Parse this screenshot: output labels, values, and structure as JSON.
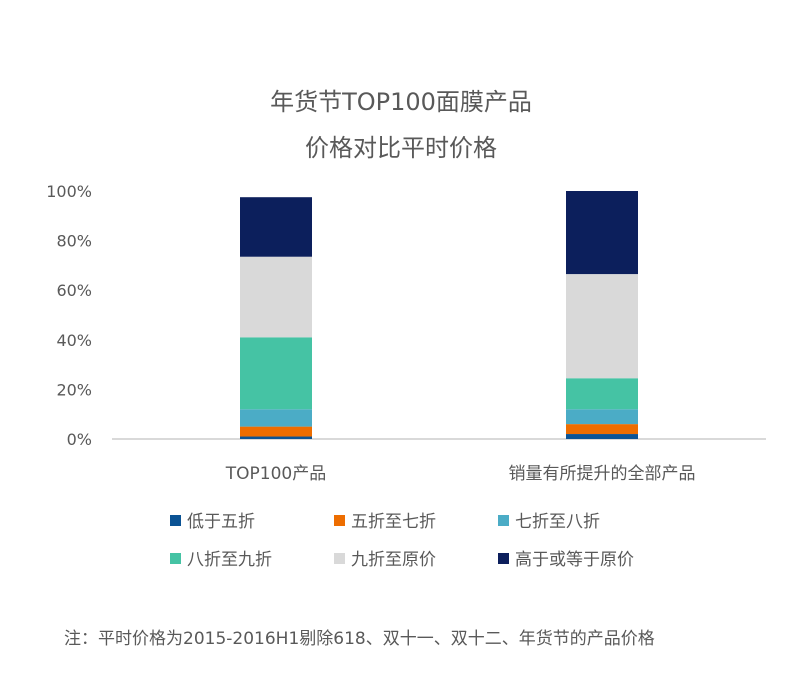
{
  "chart_data": {
    "type": "bar",
    "stacked": true,
    "title_lines": [
      "年货节TOP100面膜产品",
      "价格对比平时价格"
    ],
    "categories": [
      "TOP100产品",
      "销量有所提升的全部产品"
    ],
    "ylim": [
      0,
      100
    ],
    "yticks": [
      "0%",
      "20%",
      "40%",
      "60%",
      "80%",
      "100%"
    ],
    "series": [
      {
        "name": "低于五折",
        "color": "#0B5394",
        "values": [
          1,
          2
        ]
      },
      {
        "name": "五折至七折",
        "color": "#ED6D00",
        "values": [
          4,
          4
        ]
      },
      {
        "name": "七折至八折",
        "color": "#4BACC6",
        "values": [
          7,
          6
        ]
      },
      {
        "name": "八折至九折",
        "color": "#45C3A4",
        "values": [
          29,
          12.5
        ]
      },
      {
        "name": "九折至原价",
        "color": "#D9D9D9",
        "values": [
          32.5,
          42
        ]
      },
      {
        "name": "高于或等于原价",
        "color": "#0C1F5C",
        "values": [
          24,
          33.5
        ]
      }
    ],
    "legend_position": "bottom",
    "note": "注：平时价格为2015-2016H1剔除618、双十一、双十二、年货节的产品价格"
  }
}
